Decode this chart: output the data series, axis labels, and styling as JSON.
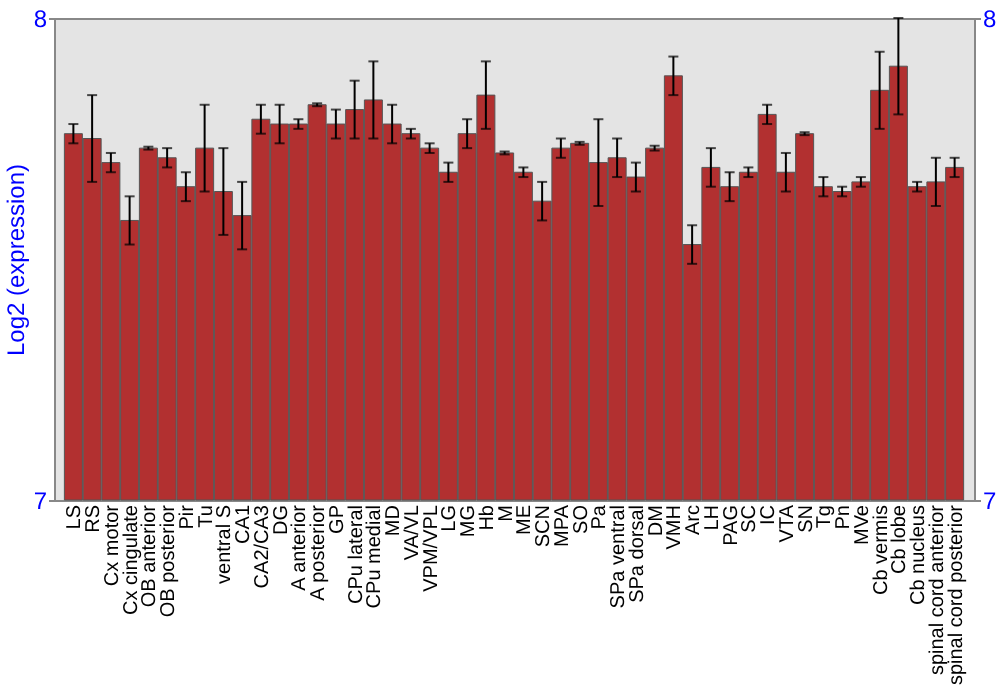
{
  "chart_data": {
    "type": "bar",
    "ylabel": "Log2 (expression)",
    "categories": [
      "LS",
      "RS",
      "Cx motor",
      "Cx cingulate",
      "OB anterior",
      "OB posterior",
      "Pir",
      "Tu",
      "ventral S",
      "CA1",
      "CA2/CA3",
      "DG",
      "A anterior",
      "A posterior",
      "GP",
      "CPu lateral",
      "CPu medial",
      "MD",
      "VA/VL",
      "VPM/VPL",
      "LG",
      "MG",
      "Hb",
      "M",
      "ME",
      "SCN",
      "MPA",
      "SO",
      "Pa",
      "SPa ventral",
      "SPa dorsal",
      "DM",
      "VMH",
      "Arc",
      "LH",
      "PAG",
      "SC",
      "IC",
      "VTA",
      "SN",
      "Tg",
      "Pn",
      "MVe",
      "Cb vermis",
      "Cb lobe",
      "Cb nucleus",
      "spinal cord anterior",
      "spinal cord posterior"
    ],
    "values": [
      7.76,
      7.75,
      7.7,
      7.58,
      7.73,
      7.71,
      7.65,
      7.73,
      7.64,
      7.59,
      7.79,
      7.78,
      7.78,
      7.82,
      7.78,
      7.81,
      7.83,
      7.78,
      7.76,
      7.73,
      7.68,
      7.76,
      7.84,
      7.72,
      7.68,
      7.62,
      7.73,
      7.74,
      7.7,
      7.71,
      7.67,
      7.73,
      7.88,
      7.53,
      7.69,
      7.65,
      7.68,
      7.8,
      7.68,
      7.76,
      7.65,
      7.64,
      7.66,
      7.85,
      7.9,
      7.65,
      7.66,
      7.69
    ],
    "errors": [
      0.02,
      0.09,
      0.02,
      0.05,
      0.003,
      0.02,
      0.03,
      0.09,
      0.09,
      0.07,
      0.03,
      0.04,
      0.01,
      0.003,
      0.03,
      0.06,
      0.08,
      0.04,
      0.01,
      0.01,
      0.02,
      0.03,
      0.07,
      0.003,
      0.01,
      0.04,
      0.02,
      0.003,
      0.09,
      0.04,
      0.03,
      0.005,
      0.04,
      0.04,
      0.04,
      0.03,
      0.01,
      0.02,
      0.04,
      0.003,
      0.02,
      0.01,
      0.01,
      0.08,
      0.1,
      0.01,
      0.05,
      0.02
    ],
    "color": "#b23030",
    "ylim": [
      7,
      8
    ],
    "yticks": [
      7,
      8
    ],
    "y2lim": [
      7,
      8
    ],
    "y2ticks": [
      7,
      8
    ],
    "grid": false
  }
}
